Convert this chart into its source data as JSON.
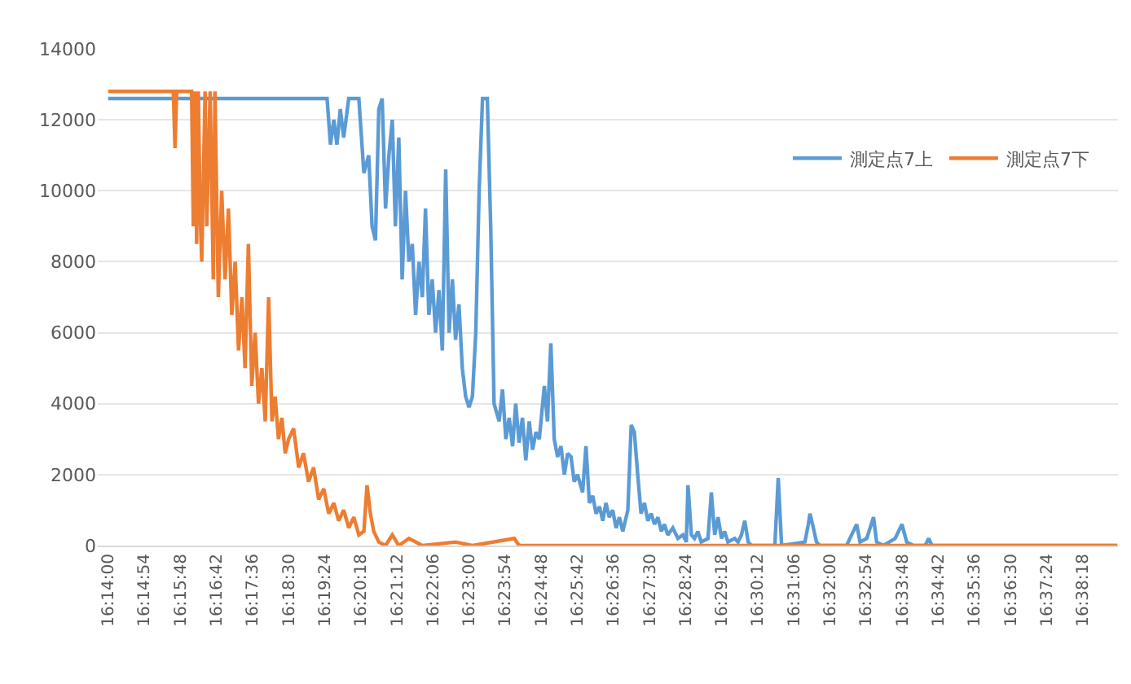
{
  "chart_data": {
    "type": "line",
    "xlim": [
      16.229,
      16.653
    ],
    "ylim": [
      0,
      14000
    ],
    "xticks": [
      {
        "value": 16.2333,
        "label": "16:14:00"
      },
      {
        "value": 16.2483,
        "label": "16:14:54"
      },
      {
        "value": 16.2633,
        "label": "16:15:48"
      },
      {
        "value": 16.2783,
        "label": "16:16:42"
      },
      {
        "value": 16.2933,
        "label": "16:17:36"
      },
      {
        "value": 16.3083,
        "label": "16:18:30"
      },
      {
        "value": 16.3233,
        "label": "16:19:24"
      },
      {
        "value": 16.3383,
        "label": "16:20:18"
      },
      {
        "value": 16.3533,
        "label": "16:21:12"
      },
      {
        "value": 16.3683,
        "label": "16:22:06"
      },
      {
        "value": 16.3833,
        "label": "16:23:00"
      },
      {
        "value": 16.3983,
        "label": "16:23:54"
      },
      {
        "value": 16.4133,
        "label": "16:24:48"
      },
      {
        "value": 16.4283,
        "label": "16:25:42"
      },
      {
        "value": 16.4433,
        "label": "16:26:36"
      },
      {
        "value": 16.4583,
        "label": "16:27:30"
      },
      {
        "value": 16.4733,
        "label": "16:28:24"
      },
      {
        "value": 16.4883,
        "label": "16:29:18"
      },
      {
        "value": 16.5033,
        "label": "16:30:12"
      },
      {
        "value": 16.5183,
        "label": "16:31:06"
      },
      {
        "value": 16.5333,
        "label": "16:32:00"
      },
      {
        "value": 16.5483,
        "label": "16:32:54"
      },
      {
        "value": 16.5633,
        "label": "16:33:48"
      },
      {
        "value": 16.5783,
        "label": "16:34:42"
      },
      {
        "value": 16.5933,
        "label": "16:35:36"
      },
      {
        "value": 16.6083,
        "label": "16:36:30"
      },
      {
        "value": 16.6233,
        "label": "16:37:24"
      },
      {
        "value": 16.6383,
        "label": "16:38:18"
      }
    ],
    "yticks": [
      0,
      2000,
      4000,
      6000,
      8000,
      10000,
      12000,
      14000
    ],
    "grid": "y",
    "legend": "top right",
    "marker": "none",
    "line_style": "solid",
    "series": [
      {
        "name": "測定点7上",
        "color": "#5b9bd5",
        "x": [
          16.2333,
          16.3243,
          16.3257,
          16.3271,
          16.3284,
          16.3298,
          16.3312,
          16.3333,
          16.3375,
          16.3396,
          16.3416,
          16.343,
          16.3444,
          16.3458,
          16.3472,
          16.3486,
          16.35,
          16.3514,
          16.3527,
          16.3541,
          16.3555,
          16.3569,
          16.3583,
          16.3597,
          16.3611,
          16.3625,
          16.3639,
          16.3652,
          16.3666,
          16.368,
          16.3694,
          16.3708,
          16.3722,
          16.3736,
          16.375,
          16.3764,
          16.3777,
          16.3791,
          16.3805,
          16.3819,
          16.3833,
          16.3847,
          16.3861,
          16.3875,
          16.3889,
          16.3909,
          16.3923,
          16.3937,
          16.3958,
          16.3972,
          16.3986,
          16.4,
          16.4014,
          16.4027,
          16.4041,
          16.4055,
          16.4069,
          16.4083,
          16.4097,
          16.4111,
          16.4125,
          16.4146,
          16.4159,
          16.4173,
          16.4187,
          16.4201,
          16.4215,
          16.4229,
          16.4243,
          16.4257,
          16.427,
          16.4284,
          16.4305,
          16.4319,
          16.4333,
          16.4347,
          16.4361,
          16.4375,
          16.4389,
          16.4402,
          16.4416,
          16.443,
          16.4444,
          16.4458,
          16.4472,
          16.4493,
          16.4507,
          16.452,
          16.4534,
          16.4548,
          16.4562,
          16.4576,
          16.459,
          16.4604,
          16.4618,
          16.4632,
          16.4645,
          16.4659,
          16.468,
          16.4701,
          16.4722,
          16.4736,
          16.4743,
          16.4757,
          16.477,
          16.4784,
          16.4798,
          16.4826,
          16.484,
          16.4854,
          16.4868,
          16.4882,
          16.4895,
          16.4909,
          16.4937,
          16.4951,
          16.4965,
          16.4979,
          16.4993,
          16.5007,
          16.5104,
          16.5118,
          16.5132,
          16.5229,
          16.5243,
          16.525,
          16.5264,
          16.5277,
          16.5291,
          16.5402,
          16.5423,
          16.5444,
          16.5458,
          16.5486,
          16.5514,
          16.5527,
          16.5555,
          16.5604,
          16.5632,
          16.5652,
          16.568,
          16.5729,
          16.5743,
          16.5757,
          16.6527
        ],
        "values": [
          12600,
          12600,
          11300,
          12000,
          11300,
          12300,
          11500,
          12600,
          12600,
          10500,
          11000,
          9000,
          8600,
          12300,
          12600,
          9500,
          11000,
          12000,
          9000,
          11500,
          7500,
          10000,
          8000,
          8500,
          6500,
          8000,
          7000,
          9500,
          6500,
          7500,
          6000,
          7200,
          5500,
          10600,
          6000,
          7500,
          5800,
          6800,
          5000,
          4200,
          3900,
          4200,
          6000,
          10000,
          12600,
          12600,
          9000,
          4000,
          3500,
          4400,
          3000,
          3600,
          2800,
          4000,
          2900,
          3600,
          2400,
          3500,
          2700,
          3200,
          3000,
          4500,
          3500,
          5700,
          3000,
          2500,
          2800,
          2000,
          2600,
          2500,
          1800,
          2000,
          1500,
          2800,
          1200,
          1400,
          900,
          1100,
          700,
          1200,
          800,
          1000,
          500,
          800,
          400,
          1000,
          3400,
          3200,
          2000,
          900,
          1200,
          700,
          900,
          600,
          800,
          400,
          600,
          300,
          500,
          200,
          300,
          100,
          1700,
          300,
          200,
          400,
          100,
          200,
          1500,
          300,
          800,
          200,
          400,
          100,
          200,
          100,
          300,
          700,
          100,
          0,
          0,
          1900,
          0,
          100,
          600,
          900,
          500,
          100,
          0,
          0,
          300,
          600,
          100,
          200,
          800,
          100,
          0,
          200,
          600,
          100,
          0,
          0,
          200,
          0,
          0
        ]
      },
      {
        "name": "測定点7下",
        "color": "#ed7d31",
        "x": [
          16.2333,
          16.2604,
          16.2611,
          16.2618,
          16.268,
          16.2687,
          16.2694,
          16.2701,
          16.2708,
          16.2715,
          16.2722,
          16.2736,
          16.2743,
          16.2757,
          16.277,
          16.2777,
          16.2791,
          16.2805,
          16.2819,
          16.2833,
          16.2847,
          16.2861,
          16.2875,
          16.2889,
          16.2902,
          16.2916,
          16.293,
          16.2944,
          16.2958,
          16.2972,
          16.2986,
          16.3,
          16.3014,
          16.3027,
          16.3041,
          16.3055,
          16.3069,
          16.3083,
          16.3104,
          16.3125,
          16.3145,
          16.3166,
          16.3187,
          16.3208,
          16.3229,
          16.325,
          16.3271,
          16.3291,
          16.3312,
          16.3333,
          16.3354,
          16.3375,
          16.3396,
          16.3409,
          16.3423,
          16.3437,
          16.3458,
          16.3486,
          16.3514,
          16.3541,
          16.3583,
          16.3639,
          16.3777,
          16.3847,
          16.4021,
          16.4041,
          16.6527
        ],
        "values": [
          12800,
          12800,
          11200,
          12800,
          12800,
          9000,
          12800,
          8500,
          12800,
          9500,
          8000,
          12800,
          9000,
          12800,
          7500,
          12800,
          7000,
          10000,
          7500,
          9500,
          6500,
          8000,
          5500,
          7000,
          5000,
          8500,
          4500,
          6000,
          4000,
          5000,
          3500,
          7000,
          3500,
          4200,
          3000,
          3600,
          2600,
          3000,
          3300,
          2200,
          2600,
          1800,
          2200,
          1300,
          1600,
          900,
          1200,
          700,
          1000,
          500,
          800,
          300,
          400,
          1700,
          900,
          400,
          100,
          0,
          300,
          0,
          200,
          0,
          100,
          0,
          200,
          0,
          0
        ]
      }
    ]
  }
}
